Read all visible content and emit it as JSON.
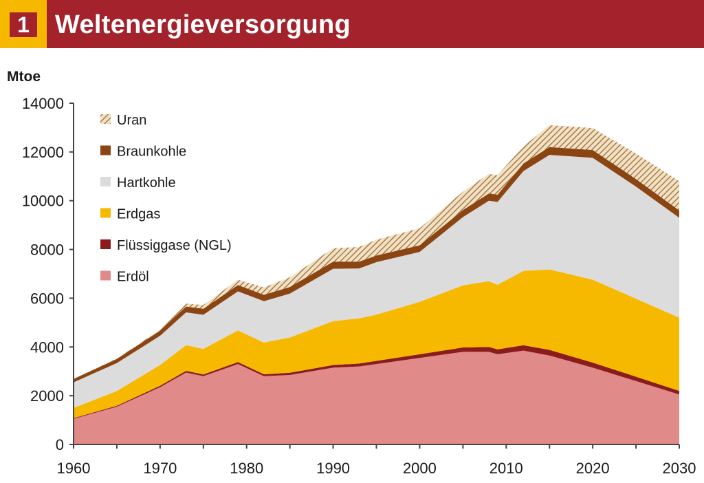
{
  "header": {
    "number": "1",
    "title": "Weltenergieversorgung"
  },
  "colors": {
    "title_bar": "#a3222b",
    "badge": "#f7b800"
  },
  "chart_data": {
    "type": "area",
    "stacked": true,
    "ylabel": "Mtoe",
    "xlim": [
      1960,
      2030
    ],
    "ylim": [
      0,
      14000
    ],
    "xticks": [
      1960,
      1970,
      1980,
      1990,
      2000,
      2010,
      2020,
      2030
    ],
    "yticks": [
      0,
      2000,
      4000,
      6000,
      8000,
      10000,
      12000,
      14000
    ],
    "grid": false,
    "legend_position": "top-left",
    "x": [
      1960,
      1965,
      1970,
      1973,
      1975,
      1979,
      1982,
      1985,
      1990,
      1993,
      1995,
      2000,
      2005,
      2008,
      2009,
      2012,
      2015,
      2020,
      2025,
      2030
    ],
    "series": [
      {
        "name": "Erdöl",
        "color": "#e08a8a",
        "values": [
          1050,
          1550,
          2350,
          2950,
          2800,
          3300,
          2800,
          2850,
          3150,
          3200,
          3300,
          3550,
          3800,
          3800,
          3700,
          3850,
          3650,
          3150,
          2600,
          2050
        ]
      },
      {
        "name": "Flüssiggase (NGL)",
        "color": "#8b1c1c",
        "values": [
          30,
          40,
          60,
          70,
          70,
          80,
          80,
          90,
          110,
          120,
          130,
          150,
          180,
          200,
          200,
          220,
          230,
          210,
          180,
          150
        ]
      },
      {
        "name": "Erdgas",
        "color": "#f7b800",
        "values": [
          420,
          600,
          850,
          1050,
          1050,
          1300,
          1300,
          1450,
          1800,
          1850,
          1900,
          2150,
          2550,
          2700,
          2650,
          3050,
          3300,
          3400,
          3200,
          3000
        ]
      },
      {
        "name": "Hartkohle",
        "color": "#dcdcdc",
        "values": [
          1050,
          1150,
          1200,
          1350,
          1400,
          1600,
          1700,
          1800,
          2150,
          2050,
          2150,
          2050,
          2800,
          3300,
          3400,
          4100,
          4700,
          5000,
          4600,
          4100
        ]
      },
      {
        "name": "Braunkohle",
        "color": "#8b4513",
        "values": [
          140,
          170,
          210,
          240,
          250,
          260,
          260,
          270,
          290,
          280,
          270,
          270,
          290,
          300,
          300,
          310,
          320,
          320,
          310,
          300
        ]
      },
      {
        "name": "Uran",
        "color": "#c9a06a",
        "pattern": "hatched",
        "values": [
          0,
          10,
          40,
          120,
          150,
          220,
          300,
          400,
          550,
          600,
          650,
          700,
          750,
          800,
          800,
          700,
          900,
          900,
          1050,
          1200
        ]
      }
    ]
  }
}
